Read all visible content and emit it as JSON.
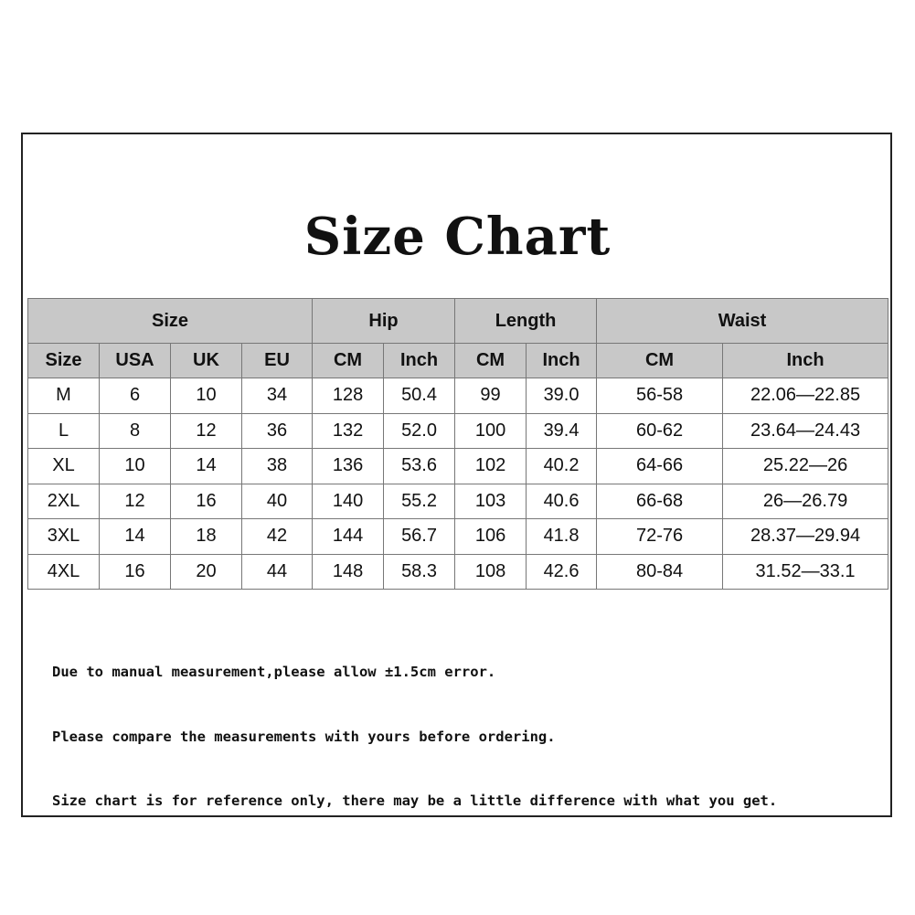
{
  "title": "Size Chart",
  "table": {
    "group_headers": [
      {
        "label": "Size",
        "span": 4
      },
      {
        "label": "Hip",
        "span": 2
      },
      {
        "label": "Length",
        "span": 2
      },
      {
        "label": "Waist",
        "span": 2
      }
    ],
    "sub_headers": [
      "Size",
      "USA",
      "UK",
      "EU",
      "CM",
      "Inch",
      "CM",
      "Inch",
      "CM",
      "Inch"
    ],
    "rows": [
      [
        "M",
        "6",
        "10",
        "34",
        "128",
        "50.4",
        "99",
        "39.0",
        "56-58",
        "22.06—22.85"
      ],
      [
        "L",
        "8",
        "12",
        "36",
        "132",
        "52.0",
        "100",
        "39.4",
        "60-62",
        "23.64—24.43"
      ],
      [
        "XL",
        "10",
        "14",
        "38",
        "136",
        "53.6",
        "102",
        "40.2",
        "64-66",
        "25.22—26"
      ],
      [
        "2XL",
        "12",
        "16",
        "40",
        "140",
        "55.2",
        "103",
        "40.6",
        "66-68",
        "26—26.79"
      ],
      [
        "3XL",
        "14",
        "18",
        "42",
        "144",
        "56.7",
        "106",
        "41.8",
        "72-76",
        "28.37—29.94"
      ],
      [
        "4XL",
        "16",
        "20",
        "44",
        "148",
        "58.3",
        "108",
        "42.6",
        "80-84",
        "31.52—33.1"
      ]
    ]
  },
  "notes": [
    "Due to manual measurement,please allow ±1.5cm error.",
    "Please compare the measurements with yours before ordering.",
    "Size chart is for reference only, there may be a little difference with what you get."
  ]
}
